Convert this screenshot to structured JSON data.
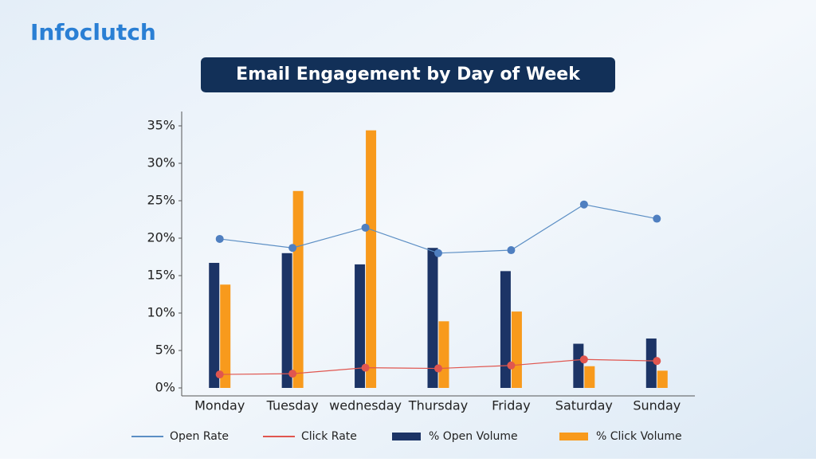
{
  "brand": "Infoclutch",
  "chart_data": {
    "type": "bar",
    "title": "Email Engagement by Day of Week",
    "categories": [
      "Monday",
      "Tuesday",
      "wednesday",
      "Thursday",
      "Friday",
      "Saturday",
      "Sunday"
    ],
    "series": [
      {
        "name": "Open Rate",
        "type": "line",
        "color": "#5b8ec4",
        "marker_color": "#4f7fc0",
        "values": [
          19.9,
          18.7,
          21.4,
          18.0,
          18.4,
          24.5,
          22.6
        ]
      },
      {
        "name": "Click Rate",
        "type": "line",
        "color": "#e0564f",
        "marker_color": "#e0564f",
        "values": [
          1.8,
          1.9,
          2.7,
          2.6,
          3.0,
          3.8,
          3.6
        ]
      },
      {
        "name": "% Open Volume",
        "type": "bar",
        "color": "#1c3466",
        "values": [
          16.7,
          18.0,
          16.5,
          18.7,
          15.6,
          5.9,
          6.6
        ]
      },
      {
        "name": "% Click Volume",
        "type": "bar",
        "color": "#f89a1c",
        "values": [
          13.8,
          26.3,
          34.4,
          8.9,
          10.2,
          2.9,
          2.3
        ]
      }
    ],
    "ylim": [
      0,
      35
    ],
    "yticks": [
      {
        "value": 0,
        "label": "0%"
      },
      {
        "value": 5,
        "label": "5%"
      },
      {
        "value": 10,
        "label": "10%"
      },
      {
        "value": 15,
        "label": "15%"
      },
      {
        "value": 20,
        "label": "20%"
      },
      {
        "value": 25,
        "label": "25%"
      },
      {
        "value": 30,
        "label": "30%"
      },
      {
        "value": 35,
        "label": "35%"
      }
    ],
    "grid": false
  }
}
